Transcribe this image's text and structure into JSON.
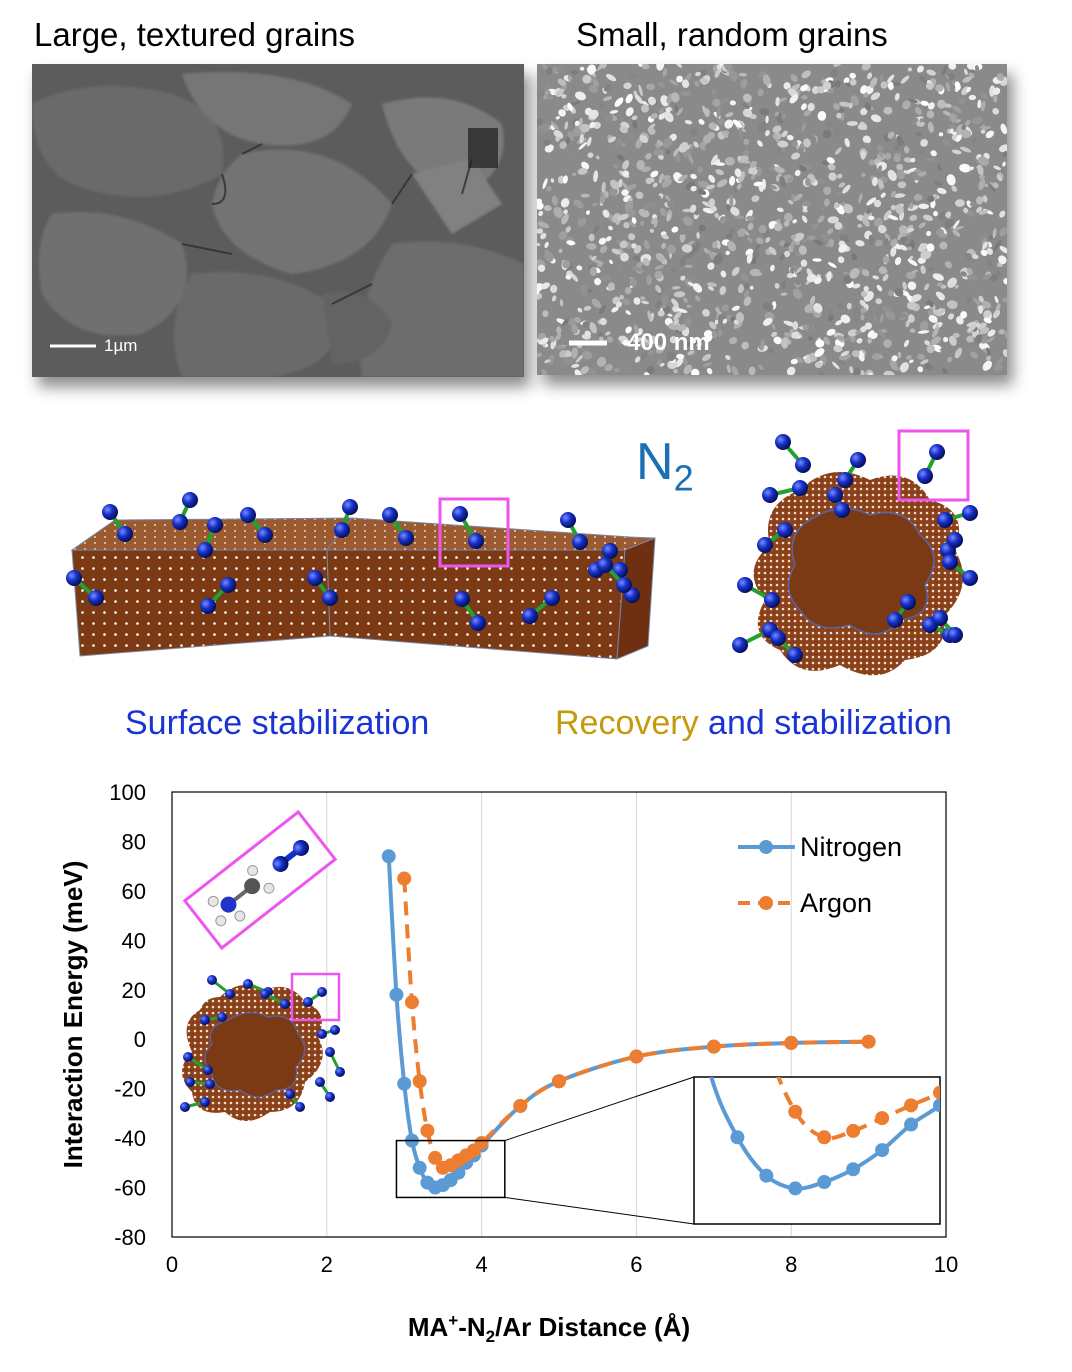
{
  "top": {
    "left_caption": "Large, textured grains",
    "right_caption": "Small, random grains",
    "left_scale": "1µm",
    "right_scale": "400 nm"
  },
  "middle": {
    "gas_label_main": "N",
    "gas_label_sub": "2",
    "left_label": "Surface stabilization",
    "right_label_part1": "Recovery",
    "right_label_part2": " and stabilization",
    "colors": {
      "blue_text": "#1a33d6",
      "gold_text": "#c49a0c",
      "n2_label": "#1a6fb5",
      "grain_brown": "#7b3a14",
      "n2_atom": "#1530c8",
      "bond": "#22a030",
      "highlight": "#ee55ee"
    }
  },
  "chart_data": {
    "type": "line",
    "xlabel_main": "MA",
    "xlabel_sup": "+",
    "xlabel_mid": "-N",
    "xlabel_sub": "2",
    "xlabel_end": "/Ar Distance (Å)",
    "ylabel": "Interaction Energy (meV)",
    "xlim": [
      0,
      10
    ],
    "ylim": [
      -80,
      100
    ],
    "xticks": [
      0,
      2,
      4,
      6,
      8,
      10
    ],
    "yticks": [
      -80,
      -60,
      -40,
      -20,
      0,
      20,
      40,
      60,
      80,
      100
    ],
    "grid": "vertical",
    "legend_position": "top-right",
    "series": [
      {
        "name": "Nitrogen",
        "color": "#5b9bd5",
        "dash": "solid",
        "x": [
          2.8,
          2.9,
          3.0,
          3.1,
          3.2,
          3.3,
          3.4,
          3.5,
          3.6,
          3.7,
          3.8,
          3.9,
          4.0,
          4.5,
          5.0,
          6.0,
          7.0,
          8.0,
          9.0
        ],
        "y": [
          74,
          18,
          -18,
          -41,
          -52,
          -58,
          -60,
          -59,
          -57,
          -54,
          -50,
          -47,
          -43,
          -27,
          -17,
          -7,
          -3,
          -1.5,
          -1
        ]
      },
      {
        "name": "Argon",
        "color": "#ed7d31",
        "dash": "dashed",
        "x": [
          3.0,
          3.1,
          3.2,
          3.3,
          3.4,
          3.5,
          3.6,
          3.7,
          3.8,
          3.9,
          4.0,
          4.5,
          5.0,
          6.0,
          7.0,
          8.0,
          9.0
        ],
        "y": [
          65,
          15,
          -17,
          -37,
          -48,
          -52,
          -51,
          -49,
          -47,
          -45,
          -42,
          -27,
          -17,
          -7,
          -3,
          -1.5,
          -1
        ]
      }
    ]
  }
}
